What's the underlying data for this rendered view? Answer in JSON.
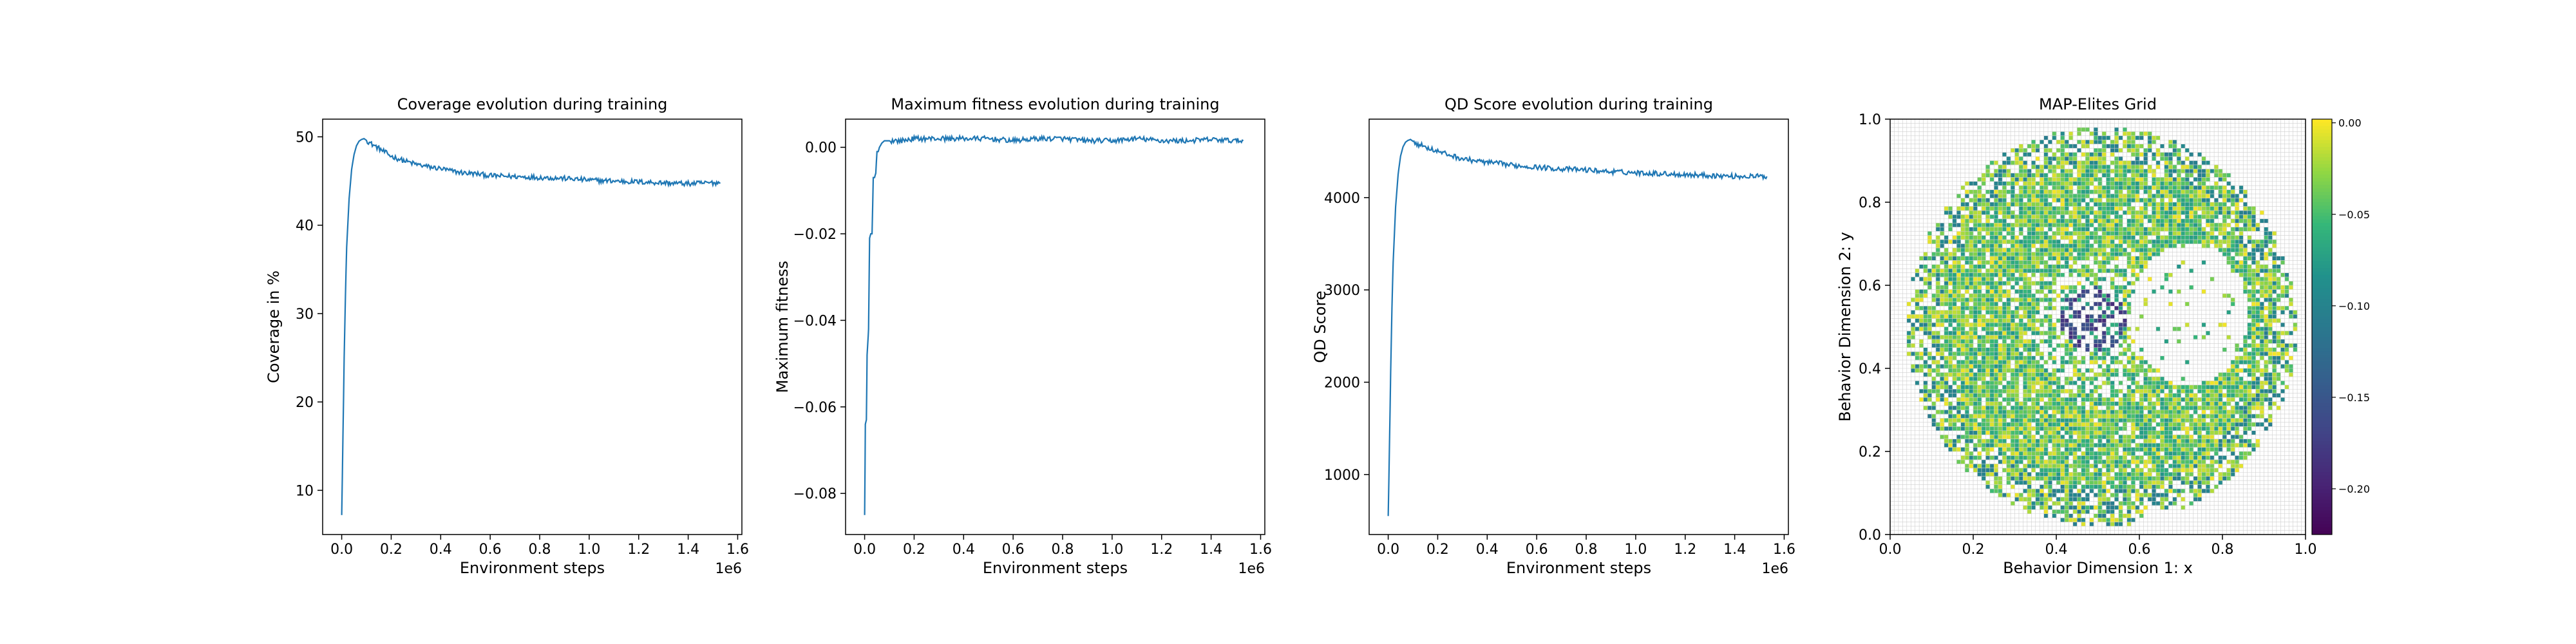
{
  "chart_data": [
    {
      "type": "line",
      "title": "Coverage evolution during training",
      "xlabel": "Environment steps",
      "ylabel": "Coverage in %",
      "x_offset_label": "1e6",
      "xlim": [
        -0.077,
        1.617
      ],
      "ylim": [
        5.0,
        52.0
      ],
      "x_ticks": [
        0.0,
        0.2,
        0.4,
        0.6,
        0.8,
        1.0,
        1.2,
        1.4,
        1.6
      ],
      "x_tick_labels": [
        "0.0",
        "0.2",
        "0.4",
        "0.6",
        "0.8",
        "1.0",
        "1.2",
        "1.4",
        "1.6"
      ],
      "y_ticks": [
        10,
        20,
        30,
        40,
        50
      ],
      "y_tick_labels": [
        "10",
        "20",
        "30",
        "40",
        "50"
      ],
      "line_color": "#1f77b4",
      "series": [
        {
          "x": [
            0.0,
            0.005,
            0.01,
            0.015,
            0.02,
            0.03,
            0.04,
            0.05,
            0.06,
            0.07,
            0.08,
            0.09,
            0.1,
            0.12,
            0.15,
            0.2,
            0.25,
            0.3,
            0.35,
            0.4,
            0.45,
            0.5,
            0.55,
            0.6,
            0.7,
            0.8,
            0.9,
            1.0,
            1.1,
            1.2,
            1.3,
            1.4,
            1.5,
            1.53
          ],
          "y": [
            7.2,
            16.0,
            25.0,
            32.0,
            37.5,
            43.0,
            46.3,
            48.0,
            49.0,
            49.5,
            49.7,
            49.8,
            49.6,
            49.2,
            48.7,
            47.8,
            47.3,
            46.9,
            46.6,
            46.4,
            46.1,
            45.9,
            45.8,
            45.6,
            45.5,
            45.4,
            45.3,
            45.1,
            45.0,
            44.9,
            44.8,
            44.7,
            44.8,
            44.8
          ]
        }
      ]
    },
    {
      "type": "line",
      "title": "Maximum fitness evolution during training",
      "xlabel": "Environment steps",
      "ylabel": "Maximum fitness",
      "x_offset_label": "1e6",
      "xlim": [
        -0.077,
        1.617
      ],
      "ylim": [
        -0.0895,
        0.0065
      ],
      "x_ticks": [
        0.0,
        0.2,
        0.4,
        0.6,
        0.8,
        1.0,
        1.2,
        1.4,
        1.6
      ],
      "x_tick_labels": [
        "0.0",
        "0.2",
        "0.4",
        "0.6",
        "0.8",
        "1.0",
        "1.2",
        "1.4",
        "1.6"
      ],
      "y_ticks": [
        -0.08,
        -0.06,
        -0.04,
        -0.02,
        0.0
      ],
      "y_tick_labels": [
        "−0.08",
        "−0.06",
        "−0.04",
        "−0.02",
        "0.00"
      ],
      "line_color": "#1f77b4",
      "series": [
        {
          "x": [
            0.0,
            0.003,
            0.007,
            0.01,
            0.013,
            0.016,
            0.02,
            0.025,
            0.03,
            0.035,
            0.04,
            0.045,
            0.05,
            0.055,
            0.06,
            0.065,
            0.07,
            0.08,
            0.09,
            0.1,
            0.15,
            0.2,
            0.3,
            0.4,
            0.5,
            0.6,
            0.7,
            0.8,
            0.9,
            1.0,
            1.1,
            1.2,
            1.3,
            1.4,
            1.5,
            1.53
          ],
          "y": [
            -0.085,
            -0.064,
            -0.063,
            -0.048,
            -0.045,
            -0.042,
            -0.021,
            -0.02,
            -0.02,
            -0.007,
            -0.007,
            -0.006,
            -0.001,
            -0.001,
            0.0,
            0.0005,
            0.001,
            0.0015,
            0.0015,
            0.0015,
            0.0015,
            0.002,
            0.002,
            0.002,
            0.002,
            0.0015,
            0.002,
            0.002,
            0.0015,
            0.0015,
            0.002,
            0.0015,
            0.0015,
            0.0018,
            0.0015,
            0.0015
          ]
        }
      ]
    },
    {
      "type": "line",
      "title": "QD Score evolution during training",
      "xlabel": "Environment steps",
      "ylabel": "QD Score",
      "x_offset_label": "1e6",
      "xlim": [
        -0.077,
        1.617
      ],
      "ylim": [
        350,
        4850
      ],
      "x_ticks": [
        0.0,
        0.2,
        0.4,
        0.6,
        0.8,
        1.0,
        1.2,
        1.4,
        1.6
      ],
      "x_tick_labels": [
        "0.0",
        "0.2",
        "0.4",
        "0.6",
        "0.8",
        "1.0",
        "1.2",
        "1.4",
        "1.6"
      ],
      "y_ticks": [
        1000,
        2000,
        3000,
        4000
      ],
      "y_tick_labels": [
        "1000",
        "2000",
        "3000",
        "4000"
      ],
      "line_color": "#1f77b4",
      "series": [
        {
          "x": [
            0.0,
            0.005,
            0.01,
            0.015,
            0.02,
            0.03,
            0.04,
            0.05,
            0.06,
            0.07,
            0.08,
            0.09,
            0.1,
            0.12,
            0.15,
            0.2,
            0.25,
            0.3,
            0.35,
            0.4,
            0.45,
            0.5,
            0.6,
            0.7,
            0.8,
            0.9,
            1.0,
            1.1,
            1.2,
            1.3,
            1.4,
            1.5,
            1.53
          ],
          "y": [
            550,
            1300,
            2100,
            2800,
            3300,
            3900,
            4250,
            4450,
            4550,
            4600,
            4620,
            4630,
            4610,
            4580,
            4550,
            4500,
            4460,
            4420,
            4400,
            4380,
            4370,
            4350,
            4330,
            4310,
            4300,
            4280,
            4270,
            4260,
            4250,
            4240,
            4230,
            4230,
            4230
          ]
        }
      ]
    },
    {
      "type": "heatmap",
      "title": "MAP-Elites Grid",
      "xlabel": "Behavior Dimension 1: x",
      "ylabel": "Behavior Dimension 2: y",
      "xlim": [
        0.0,
        1.0
      ],
      "ylim": [
        0.0,
        1.0
      ],
      "x_ticks": [
        0.0,
        0.2,
        0.4,
        0.6,
        0.8,
        1.0
      ],
      "x_tick_labels": [
        "0.0",
        "0.2",
        "0.4",
        "0.6",
        "0.8",
        "1.0"
      ],
      "y_ticks": [
        0.0,
        0.2,
        0.4,
        0.6,
        0.8,
        1.0
      ],
      "y_tick_labels": [
        "0.0",
        "0.2",
        "0.4",
        "0.6",
        "0.8",
        "1.0"
      ],
      "grid": true,
      "grid_cells": 100,
      "colormap": "viridis",
      "colorbar_range": [
        -0.225,
        0.002
      ],
      "colorbar_ticks": [
        0.0,
        -0.05,
        -0.1,
        -0.15,
        -0.2
      ],
      "colorbar_tick_labels": [
        "0.00",
        "−0.05",
        "−0.10",
        "−0.15",
        "−0.20"
      ],
      "filled_region": {
        "shape": "ellipse",
        "center": [
          0.51,
          0.5
        ],
        "radius_x": 0.47,
        "radius_y": 0.48,
        "typical_value": -0.04,
        "central_cluster": {
          "center": [
            0.49,
            0.52
          ],
          "radius": 0.08,
          "value": -0.12
        },
        "sparse_zone": {
          "center": [
            0.72,
            0.53
          ],
          "radius_x": 0.14,
          "radius_y": 0.17
        }
      }
    }
  ]
}
